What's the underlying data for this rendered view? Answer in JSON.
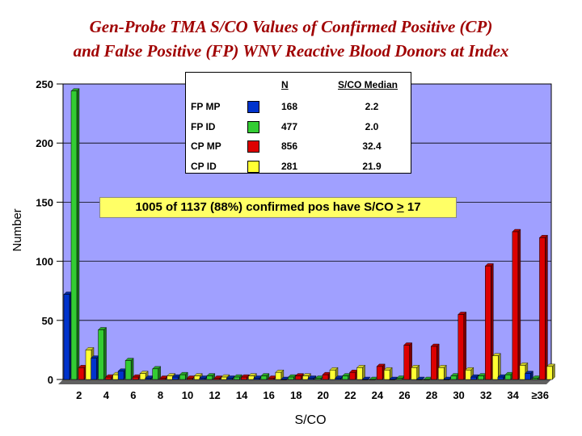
{
  "title_line_1": "Gen-Probe TMA S/CO Values of Confirmed Positive (CP)",
  "title_line_2": "and False Positive (FP) WNV Reactive Blood Donors at Index",
  "annotation": {
    "prefix": "1005 of 1137 (88%) confirmed pos have S/CO ",
    "symbol": ">",
    "suffix": " 17"
  },
  "legend": {
    "col_n": "N",
    "col_median": "S/CO Median",
    "rows": [
      {
        "label": "FP MP",
        "color": "#0033cc",
        "n": "168",
        "median": "2.2"
      },
      {
        "label": "FP ID",
        "color": "#33cc33",
        "n": "477",
        "median": "2.0"
      },
      {
        "label": "CP MP",
        "color": "#dd0000",
        "n": "856",
        "median": "32.4"
      },
      {
        "label": "CP ID",
        "color": "#ffff33",
        "n": "281",
        "median": "21.9"
      }
    ]
  },
  "chart_data": {
    "type": "bar",
    "xlabel": "S/CO",
    "ylabel": "Number",
    "ylim": [
      0,
      250
    ],
    "yticks": [
      0,
      50,
      100,
      150,
      200,
      250
    ],
    "categories": [
      "2",
      "4",
      "6",
      "8",
      "10",
      "12",
      "14",
      "16",
      "18",
      "20",
      "22",
      "24",
      "26",
      "28",
      "30",
      "32",
      "34",
      "≥36"
    ],
    "grid": "horizontal",
    "background": "#a0a0ff",
    "series": [
      {
        "name": "FP MP",
        "color": "#0033cc",
        "values": [
          72,
          18,
          7,
          1,
          2,
          1,
          1,
          1,
          0,
          1,
          1,
          0,
          0,
          0,
          0,
          2,
          2,
          5
        ]
      },
      {
        "name": "FP ID",
        "color": "#33cc33",
        "values": [
          244,
          42,
          16,
          9,
          4,
          3,
          2,
          3,
          2,
          1,
          3,
          0,
          1,
          0,
          3,
          3,
          4,
          1
        ]
      },
      {
        "name": "CP MP",
        "color": "#dd0000",
        "values": [
          10,
          2,
          2,
          1,
          1,
          1,
          2,
          1,
          3,
          4,
          6,
          11,
          29,
          28,
          55,
          96,
          125,
          120
        ]
      },
      {
        "name": "CP ID",
        "color": "#ffff33",
        "values": [
          25,
          4,
          5,
          3,
          3,
          2,
          3,
          6,
          3,
          8,
          10,
          8,
          10,
          10,
          8,
          20,
          12,
          11
        ]
      }
    ]
  }
}
